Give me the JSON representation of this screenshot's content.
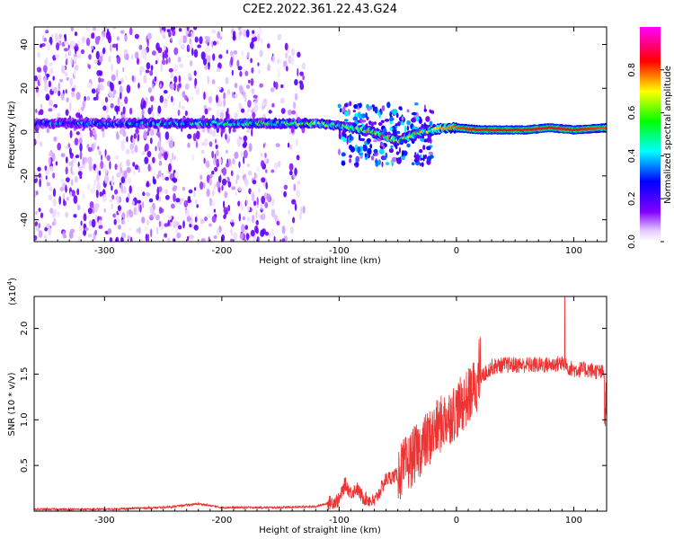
{
  "title": "C2E2.2022.361.22.43.G24",
  "top_chart": {
    "xlabel": "Height of straight line (km)",
    "ylabel": "Frequency (Hz)",
    "colorbar_label": "Normalized spectral amplitude",
    "xticks": [
      "-300",
      "-200",
      "-100",
      "0",
      "100"
    ],
    "yticks": [
      "40",
      "20",
      "0",
      "-20",
      "-40"
    ],
    "cticks": [
      "0.0",
      "0.2",
      "0.4",
      "0.6",
      "0.8"
    ]
  },
  "bottom_chart": {
    "xlabel": "Height of straight line (km)",
    "ylabel": "SNR (10 * v/v)",
    "exponent": "(x10",
    "exponent_power": "4",
    "exponent_close": ")",
    "xticks": [
      "-300",
      "-200",
      "-100",
      "0",
      "100"
    ],
    "yticks": [
      "2.0",
      "1.5",
      "1.0",
      "0.5"
    ]
  },
  "chart_data": [
    {
      "type": "heatmap",
      "title": "C2E2.2022.361.22.43.G24",
      "xlabel": "Height of straight line (km)",
      "ylabel": "Frequency (Hz)",
      "xlim": [
        -360,
        128
      ],
      "ylim": [
        -50,
        48
      ],
      "colorscale_range": [
        0.0,
        1.0
      ],
      "colorscale": [
        "#ffffff",
        "#8000ff",
        "#0000ff",
        "#00ffff",
        "#00ff00",
        "#ffff00",
        "#ff0000",
        "#ff00ff"
      ],
      "ridge": {
        "x": [
          -360,
          -300,
          -250,
          -200,
          -150,
          -120,
          -100,
          -90,
          -80,
          -70,
          -60,
          -50,
          -40,
          -30,
          -20,
          -10,
          0,
          20,
          40,
          60,
          80,
          100,
          128
        ],
        "frequency": [
          4,
          4,
          4,
          4,
          4,
          4,
          3,
          2,
          1,
          0,
          -2,
          -4,
          -2,
          0,
          1,
          2,
          2,
          1,
          1,
          1,
          2,
          1,
          2
        ],
        "amplitude": [
          0.3,
          0.35,
          0.4,
          0.45,
          0.5,
          0.55,
          0.55,
          0.6,
          0.6,
          0.65,
          0.65,
          0.6,
          0.6,
          0.65,
          0.7,
          0.75,
          0.8,
          0.85,
          0.85,
          0.85,
          0.85,
          0.85,
          0.8
        ]
      },
      "noise_region_x": [
        -360,
        -130
      ]
    },
    {
      "type": "line",
      "xlabel": "Height of straight line (km)",
      "ylabel": "SNR (10 * v/v)",
      "y_multiplier": "x10^4",
      "xlim": [
        -360,
        128
      ],
      "ylim": [
        0,
        2.35
      ],
      "color": "#ee3333",
      "series": [
        {
          "x": [
            -360,
            -300,
            -250,
            -220,
            -200,
            -150,
            -120,
            -100,
            -95,
            -90,
            -85,
            -80,
            -70,
            -60,
            -50,
            -40,
            -30,
            -20,
            -10,
            0,
            10,
            20,
            30,
            40,
            60,
            80,
            90,
            95,
            100,
            110,
            120,
            128
          ],
          "values": [
            0.02,
            0.02,
            0.04,
            0.08,
            0.04,
            0.04,
            0.05,
            0.12,
            0.3,
            0.2,
            0.25,
            0.15,
            0.1,
            0.35,
            0.4,
            0.55,
            0.7,
            0.85,
            1.0,
            1.1,
            1.25,
            1.45,
            1.58,
            1.6,
            1.6,
            1.6,
            1.62,
            1.58,
            1.55,
            1.55,
            1.53,
            1.5
          ]
        }
      ]
    }
  ]
}
